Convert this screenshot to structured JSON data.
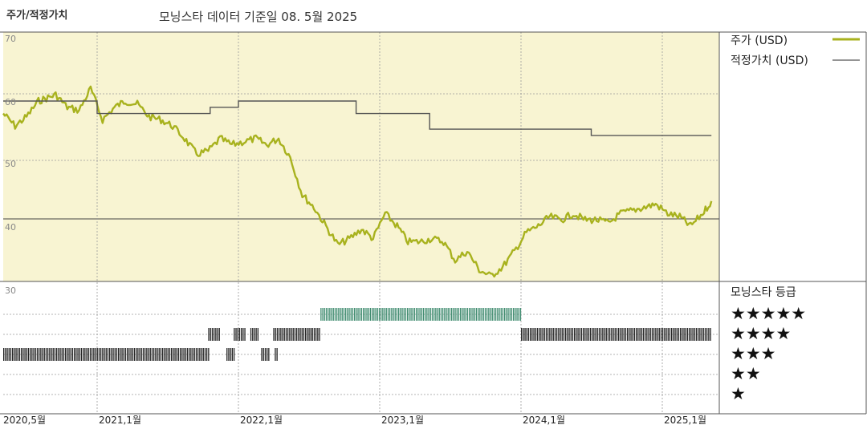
{
  "header": {
    "left_label": "주가/적정가치",
    "title": "모닝스타 데이터 기준일 08. 5월 2025"
  },
  "legend": {
    "price_label": "주가 (USD)",
    "fair_label": "적정가치 (USD)",
    "rating_title": "모닝스타 등급",
    "stars": [
      "★★★★★",
      "★★★★",
      "★★★",
      "★★",
      "★"
    ]
  },
  "colors": {
    "price": "#a8b21e",
    "fair": "#555555",
    "plot_bg": "#f8f4d2",
    "rating5": "#3e8a6e",
    "rating_other": "#222222"
  },
  "chart_data": [
    {
      "type": "line",
      "title": "주가/적정가치",
      "xlabel": "",
      "ylabel": "",
      "xlim": [
        "2020-05-01",
        "2025-05-08"
      ],
      "ylim": [
        30,
        70
      ],
      "yticks": [
        70,
        60,
        50,
        40,
        30
      ],
      "xticks": [
        "2020,5월",
        "2021,1월",
        "2022,1월",
        "2023,1월",
        "2024,1월",
        "2025,1월"
      ],
      "grid": true,
      "legend_position": "right",
      "series": [
        {
          "name": "주가 (USD)",
          "x": [
            "2020-05-01",
            "2020-06-01",
            "2020-07-01",
            "2020-08-01",
            "2020-09-15",
            "2020-10-15",
            "2020-11-15",
            "2020-12-15",
            "2021-01-15",
            "2021-02-15",
            "2021-03-15",
            "2021-04-15",
            "2021-05-15",
            "2021-06-15",
            "2021-07-15",
            "2021-08-15",
            "2021-09-15",
            "2021-10-15",
            "2021-11-15",
            "2021-12-15",
            "2022-01-15",
            "2022-02-15",
            "2022-03-15",
            "2022-04-15",
            "2022-05-15",
            "2022-06-15",
            "2022-07-15",
            "2022-08-15",
            "2022-09-15",
            "2022-10-15",
            "2022-11-15",
            "2022-12-15",
            "2023-01-15",
            "2023-02-15",
            "2023-03-15",
            "2023-04-15",
            "2023-05-15",
            "2023-06-15",
            "2023-07-15",
            "2023-08-15",
            "2023-09-15",
            "2023-10-15",
            "2023-11-15",
            "2023-12-15",
            "2024-01-15",
            "2024-02-15",
            "2024-03-15",
            "2024-04-15",
            "2024-05-15",
            "2024-06-15",
            "2024-07-15",
            "2024-08-15",
            "2024-09-15",
            "2024-10-15",
            "2024-11-15",
            "2024-12-15",
            "2025-01-15",
            "2025-02-15",
            "2025-03-15",
            "2025-04-15",
            "2025-05-08"
          ],
          "values": [
            58,
            56,
            57.5,
            60,
            61,
            59,
            58.5,
            62,
            57,
            59,
            60,
            59.5,
            57.5,
            57,
            56,
            54,
            51.5,
            52,
            54,
            53,
            53.5,
            54,
            53,
            54,
            51,
            45,
            43,
            40,
            37,
            38,
            39.5,
            38,
            42,
            40,
            37.5,
            37.5,
            38,
            37.5,
            34.5,
            36,
            33,
            32,
            33.5,
            36,
            39,
            40,
            41.5,
            41,
            42,
            41,
            41,
            40.5,
            42,
            42.5,
            43,
            43.5,
            42,
            41.5,
            40,
            42,
            44
          ]
        },
        {
          "name": "적정가치 (USD)",
          "x": [
            "2020-05-01",
            "2021-01-01",
            "2021-01-01",
            "2021-10-20",
            "2021-10-20",
            "2022-01-01",
            "2022-01-01",
            "2022-11-01",
            "2022-11-01",
            "2023-04-01",
            "2023-04-01",
            "2023-05-10",
            "2023-05-10",
            "2024-07-01",
            "2024-07-01",
            "2025-05-08"
          ],
          "values": [
            60,
            60,
            58,
            58,
            59,
            59,
            60,
            60,
            58,
            58,
            58,
            58,
            55.5,
            55.5,
            54.5,
            54.5
          ]
        }
      ]
    },
    {
      "type": "heatmap",
      "title": "모닝스타 등급",
      "rows": [
        "★★★★★",
        "★★★★",
        "★★★",
        "★★",
        "★"
      ],
      "periods": [
        {
          "rating": 3,
          "start": "2020-05-01",
          "end": "2021-10-15"
        },
        {
          "rating": 4,
          "start": "2021-10-15",
          "end": "2021-11-15"
        },
        {
          "rating": 3,
          "start": "2021-12-01",
          "end": "2021-12-20"
        },
        {
          "rating": 4,
          "start": "2021-12-20",
          "end": "2022-01-20"
        },
        {
          "rating": 4,
          "start": "2022-02-01",
          "end": "2022-02-20"
        },
        {
          "rating": 3,
          "start": "2022-03-01",
          "end": "2022-03-20"
        },
        {
          "rating": 4,
          "start": "2022-04-01",
          "end": "2022-07-10"
        },
        {
          "rating": 3,
          "start": "2022-04-05",
          "end": "2022-04-10"
        },
        {
          "rating": 4,
          "start": "2022-07-10",
          "end": "2022-08-01"
        },
        {
          "rating": 5,
          "start": "2022-08-01",
          "end": "2023-12-31"
        },
        {
          "rating": 4,
          "start": "2024-01-01",
          "end": "2025-05-08"
        }
      ]
    }
  ]
}
